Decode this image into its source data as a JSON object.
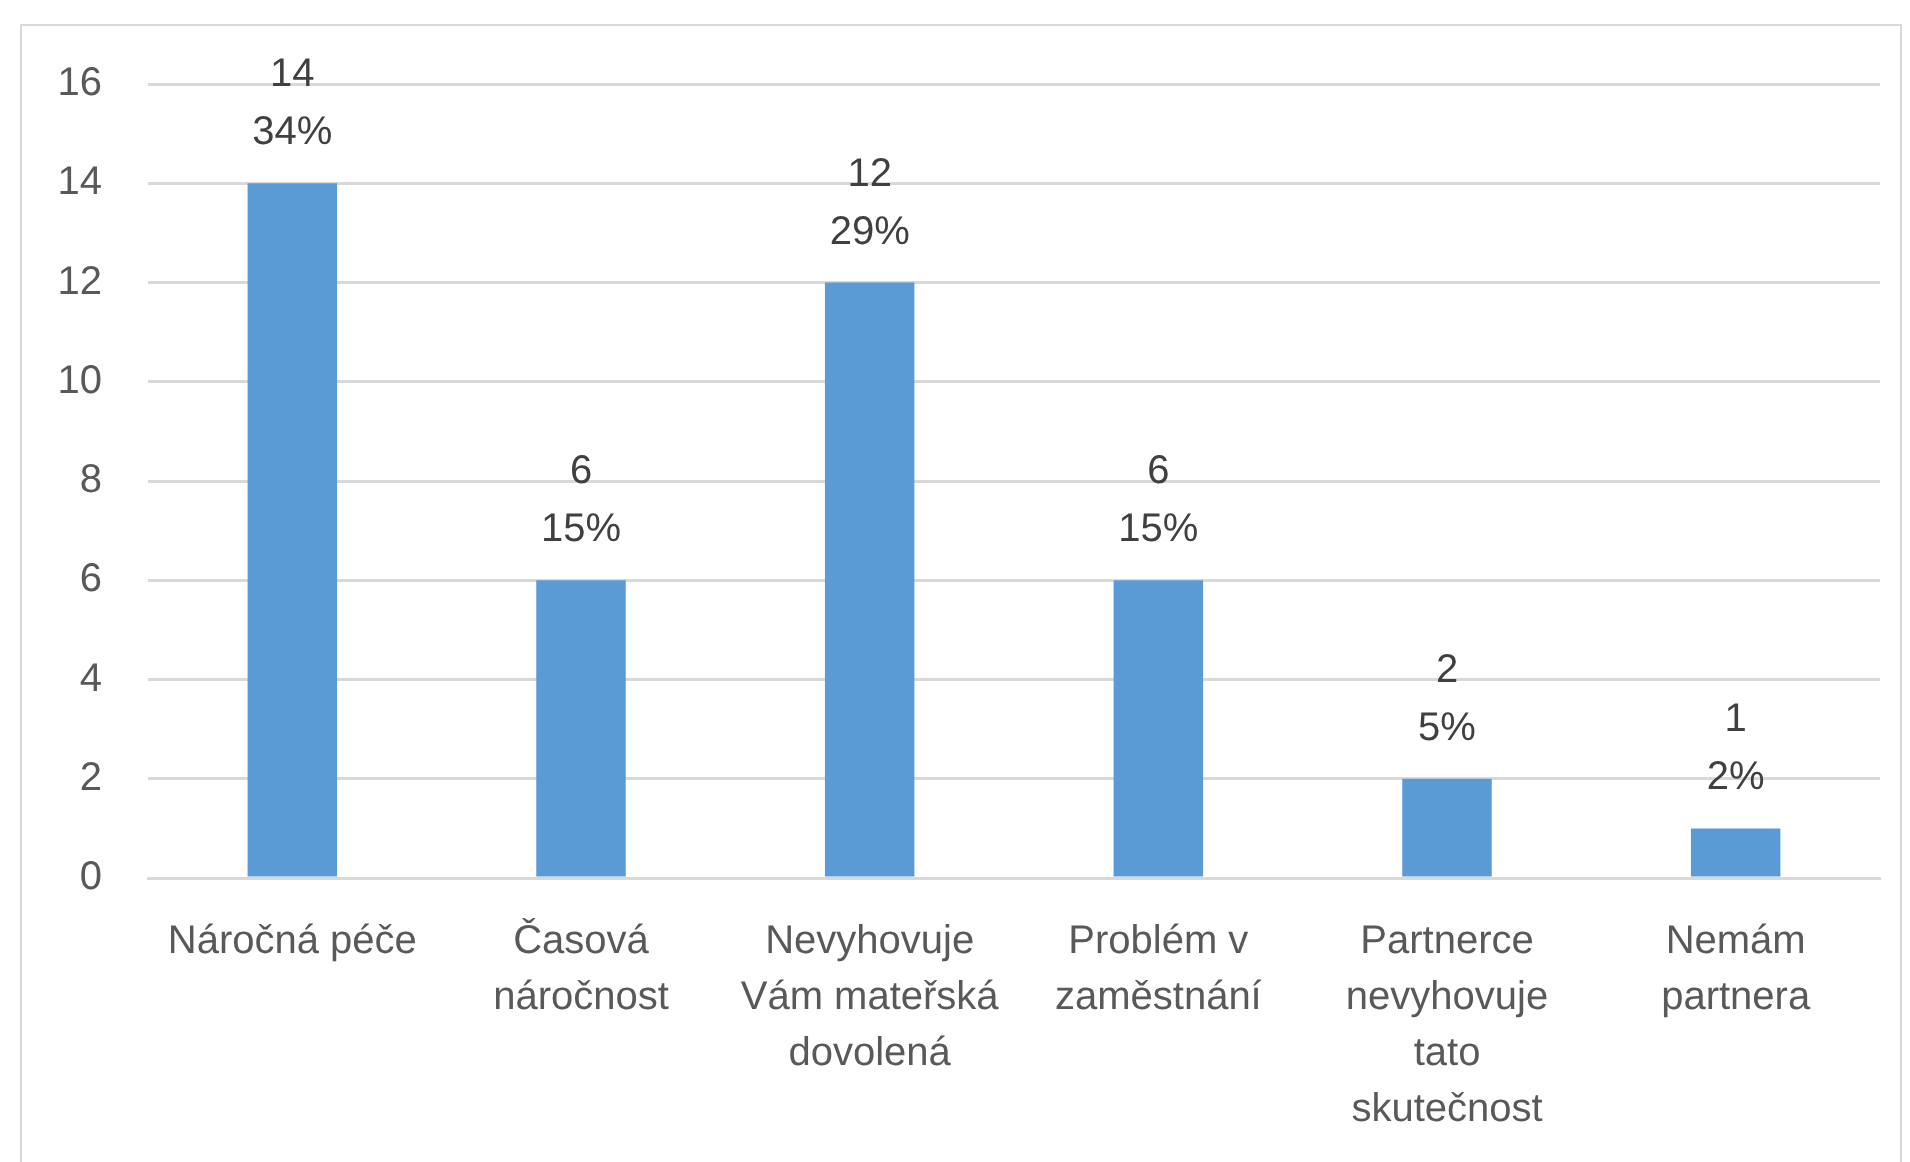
{
  "chart_data": {
    "type": "bar",
    "categories": [
      "Náročná péče",
      "Časová náročnost",
      "Nevyhovuje Vám mateřská dovolená",
      "Problém v zaměstnání",
      "Partnerce nevyhovuje tato skutečnost",
      "Nemám partnera"
    ],
    "values": [
      14,
      6,
      12,
      6,
      2,
      1
    ],
    "value_labels": [
      "14\n34%",
      "6\n15%",
      "12\n29%",
      "6\n15%",
      "2\n5%",
      "1\n2%"
    ],
    "color": "#5b9bd5",
    "ylim": [
      0,
      16
    ],
    "yticks": [
      0,
      2,
      4,
      6,
      8,
      10,
      12,
      14,
      16
    ],
    "grid": "y"
  }
}
